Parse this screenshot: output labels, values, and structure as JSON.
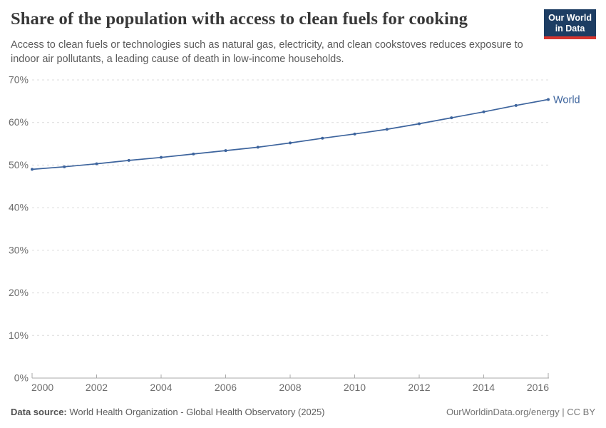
{
  "header": {
    "title": "Share of the population with access to clean fuels for cooking",
    "subtitle": "Access to clean fuels or technologies such as natural gas, electricity, and clean cookstoves reduces exposure to indoor air pollutants, a leading cause of death in low-income households.",
    "logo": {
      "line1": "Our World",
      "line2": "in Data",
      "bg_color": "#1d3d63",
      "accent_color": "#d7352e"
    }
  },
  "chart_data": {
    "type": "line",
    "title": "Share of the population with access to clean fuels for cooking",
    "x": [
      2000,
      2001,
      2002,
      2003,
      2004,
      2005,
      2006,
      2007,
      2008,
      2009,
      2010,
      2011,
      2012,
      2013,
      2014,
      2015,
      2016
    ],
    "series": [
      {
        "name": "World",
        "color": "#3d649d",
        "values": [
          49.0,
          49.6,
          50.3,
          51.1,
          51.8,
          52.6,
          53.4,
          54.2,
          55.2,
          56.3,
          57.3,
          58.4,
          59.7,
          61.1,
          62.5,
          64.0,
          65.4
        ]
      }
    ],
    "xlabel": "",
    "ylabel": "",
    "ylim": [
      0,
      70
    ],
    "yticks": [
      0,
      10,
      20,
      30,
      40,
      50,
      60,
      70
    ],
    "ytick_labels": [
      "0%",
      "10%",
      "20%",
      "30%",
      "40%",
      "50%",
      "60%",
      "70%"
    ],
    "xticks": [
      2000,
      2002,
      2004,
      2006,
      2008,
      2010,
      2012,
      2014,
      2016
    ],
    "grid": "horizontal-dashed",
    "legend": "end-of-line-label",
    "end_label": "World"
  },
  "footer": {
    "data_source_label": "Data source:",
    "data_source_value": " World Health Organization - Global Health Observatory (2025)",
    "attribution": "OurWorldinData.org/energy | CC BY"
  }
}
